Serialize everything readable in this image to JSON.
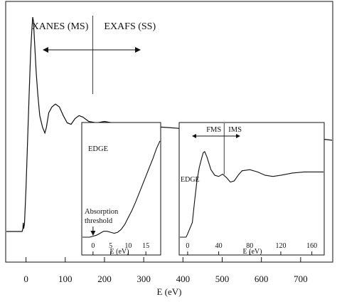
{
  "chart_data": [
    {
      "type": "line",
      "name": "main-spectrum",
      "xlabel": "E (eV)",
      "ylabel": "",
      "xlim": [
        -50,
        780
      ],
      "ylim": [
        0,
        1.5
      ],
      "xticks": [
        0,
        100,
        200,
        300,
        400,
        500,
        600,
        700
      ],
      "grid": false,
      "annotations": {
        "left_region": "XANES (MS)",
        "right_region": "EXAFS (SS)",
        "divider_x": 170
      },
      "series": [
        {
          "values": [
            [
              -50,
              0.0
            ],
            [
              -10,
              0.0
            ],
            [
              -8,
              0.02
            ],
            [
              -7,
              0.06
            ],
            [
              -6,
              0.02
            ],
            [
              -4,
              0.05
            ],
            [
              0,
              0.3
            ],
            [
              5,
              0.7
            ],
            [
              8,
              0.95
            ],
            [
              12,
              1.25
            ],
            [
              15,
              1.4
            ],
            [
              17,
              1.48
            ],
            [
              19,
              1.45
            ],
            [
              22,
              1.3
            ],
            [
              26,
              1.1
            ],
            [
              30,
              0.95
            ],
            [
              35,
              0.8
            ],
            [
              42,
              0.72
            ],
            [
              48,
              0.68
            ],
            [
              52,
              0.72
            ],
            [
              58,
              0.82
            ],
            [
              66,
              0.86
            ],
            [
              75,
              0.88
            ],
            [
              85,
              0.86
            ],
            [
              95,
              0.8
            ],
            [
              105,
              0.75
            ],
            [
              115,
              0.74
            ],
            [
              125,
              0.78
            ],
            [
              135,
              0.8
            ],
            [
              145,
              0.79
            ],
            [
              160,
              0.76
            ],
            [
              180,
              0.75
            ],
            [
              200,
              0.76
            ],
            [
              220,
              0.75
            ],
            [
              250,
              0.74
            ],
            [
              300,
              0.73
            ],
            [
              350,
              0.72
            ],
            [
              400,
              0.71
            ],
            [
              450,
              0.7
            ],
            [
              500,
              0.69
            ],
            [
              550,
              0.68
            ],
            [
              600,
              0.67
            ],
            [
              650,
              0.66
            ],
            [
              700,
              0.65
            ],
            [
              750,
              0.64
            ],
            [
              780,
              0.63
            ]
          ]
        }
      ]
    },
    {
      "type": "line",
      "name": "inset-edge",
      "title": "EDGE",
      "xlabel": "E (eV)",
      "xlim": [
        -3,
        19
      ],
      "ylim": [
        0,
        1
      ],
      "xticks": [
        0,
        5,
        10,
        15
      ],
      "annotation": "Absorption threshold",
      "series": [
        {
          "values": [
            [
              -3,
              0.0
            ],
            [
              -1,
              0.0
            ],
            [
              0,
              0.01
            ],
            [
              1,
              0.02
            ],
            [
              2,
              0.04
            ],
            [
              3,
              0.06
            ],
            [
              4,
              0.06
            ],
            [
              5,
              0.05
            ],
            [
              6,
              0.04
            ],
            [
              7,
              0.05
            ],
            [
              8,
              0.08
            ],
            [
              9,
              0.13
            ],
            [
              10,
              0.2
            ],
            [
              11,
              0.27
            ],
            [
              12,
              0.35
            ],
            [
              13,
              0.44
            ],
            [
              14,
              0.53
            ],
            [
              15,
              0.62
            ],
            [
              16,
              0.71
            ],
            [
              17,
              0.8
            ],
            [
              18,
              0.9
            ],
            [
              19,
              0.98
            ]
          ]
        }
      ]
    },
    {
      "type": "line",
      "name": "inset-fms-ims",
      "xlabel": "E (eV)",
      "xlim": [
        -10,
        175
      ],
      "ylim": [
        0,
        1
      ],
      "xticks": [
        0,
        40,
        80,
        120,
        160
      ],
      "annotations": {
        "left_region": "FMS",
        "right_region": "IMS",
        "edge_label": "EDGE",
        "divider_x": 47
      },
      "series": [
        {
          "values": [
            [
              -10,
              0.0
            ],
            [
              -2,
              0.0
            ],
            [
              0,
              0.03
            ],
            [
              3,
              0.08
            ],
            [
              6,
              0.13
            ],
            [
              9,
              0.32
            ],
            [
              12,
              0.5
            ],
            [
              15,
              0.62
            ],
            [
              18,
              0.7
            ],
            [
              20,
              0.75
            ],
            [
              22,
              0.76
            ],
            [
              25,
              0.71
            ],
            [
              30,
              0.6
            ],
            [
              35,
              0.55
            ],
            [
              40,
              0.54
            ],
            [
              45,
              0.56
            ],
            [
              50,
              0.53
            ],
            [
              55,
              0.49
            ],
            [
              60,
              0.5
            ],
            [
              65,
              0.55
            ],
            [
              70,
              0.59
            ],
            [
              80,
              0.6
            ],
            [
              90,
              0.58
            ],
            [
              100,
              0.55
            ],
            [
              110,
              0.54
            ],
            [
              120,
              0.55
            ],
            [
              135,
              0.57
            ],
            [
              150,
              0.58
            ],
            [
              165,
              0.58
            ],
            [
              175,
              0.58
            ]
          ]
        }
      ]
    }
  ]
}
